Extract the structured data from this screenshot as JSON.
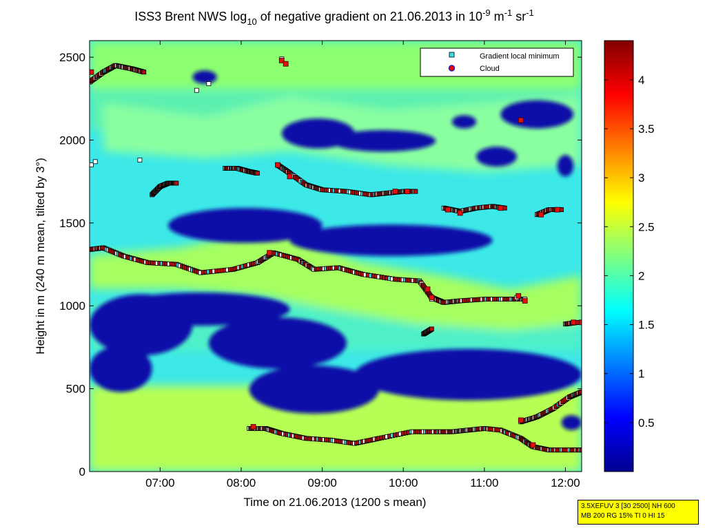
{
  "chart_data": {
    "type": "heatmap",
    "title_parts": {
      "pre": "ISS3 Brent NWS log",
      "sub": "10",
      "mid": " of negative gradient on 21.06.2013 in 10",
      "exp1": "-9",
      "unit1": " m",
      "exp2": "-1",
      "unit2": " sr",
      "exp3": "-1"
    },
    "xlabel": "Time on 21.06.2013 (1200 s mean)",
    "ylabel": "Height in m (240 m mean, tilted by 3°)",
    "xlim_hours": [
      6.13,
      12.2
    ],
    "ylim": [
      0,
      2600
    ],
    "x_ticks": [
      {
        "h": 7,
        "label": "07:00"
      },
      {
        "h": 8,
        "label": "08:00"
      },
      {
        "h": 9,
        "label": "09:00"
      },
      {
        "h": 10,
        "label": "10:00"
      },
      {
        "h": 11,
        "label": "11:00"
      },
      {
        "h": 12,
        "label": "12:00"
      }
    ],
    "y_ticks": [
      0,
      500,
      1000,
      1500,
      2000,
      2500
    ],
    "colorbar": {
      "range": [
        0,
        4.4
      ],
      "ticks": [
        0.5,
        1,
        1.5,
        2,
        2.5,
        3,
        3.5,
        4
      ],
      "tick_labels": [
        "0.5",
        "1",
        "1.5",
        "2",
        "2.5",
        "3",
        "3.5",
        "4"
      ]
    },
    "legend": {
      "entries": [
        "Gradient local minimum",
        "Cloud"
      ],
      "position": "top-right"
    },
    "low_value_regions": [
      {
        "x": [
          6.13,
          7.4
        ],
        "y": [
          700,
          1070
        ]
      },
      {
        "x": [
          6.13,
          6.9
        ],
        "y": [
          480,
          760
        ]
      },
      {
        "x": [
          6.4,
          8.6
        ],
        "y": [
          880,
          1080
        ]
      },
      {
        "x": [
          7.6,
          9.3
        ],
        "y": [
          620,
          930
        ]
      },
      {
        "x": [
          8.1,
          9.7
        ],
        "y": [
          350,
          640
        ]
      },
      {
        "x": [
          9.4,
          12.2
        ],
        "y": [
          430,
          740
        ]
      },
      {
        "x": [
          7.1,
          9.0
        ],
        "y": [
          1380,
          1590
        ]
      },
      {
        "x": [
          8.6,
          11.1
        ],
        "y": [
          1300,
          1490
        ]
      },
      {
        "x": [
          8.5,
          9.4
        ],
        "y": [
          1950,
          2130
        ]
      },
      {
        "x": [
          9.1,
          10.4
        ],
        "y": [
          1930,
          2060
        ]
      },
      {
        "x": [
          11.2,
          12.1
        ],
        "y": [
          2070,
          2240
        ]
      },
      {
        "x": [
          10.9,
          11.4
        ],
        "y": [
          1840,
          1960
        ]
      },
      {
        "x": [
          11.9,
          12.1
        ],
        "y": [
          1780,
          1910
        ]
      },
      {
        "x": [
          7.4,
          7.7
        ],
        "y": [
          2340,
          2420
        ]
      },
      {
        "x": [
          10.6,
          10.9
        ],
        "y": [
          2070,
          2150
        ]
      },
      {
        "x": [
          11.95,
          12.2
        ],
        "y": [
          250,
          340
        ]
      }
    ],
    "series": [
      {
        "name": "Gradient local minimum",
        "curves": [
          {
            "x": [
              6.13,
              6.3,
              6.55,
              6.85,
              7.2,
              7.5,
              7.9,
              8.2,
              8.4,
              8.7,
              8.9,
              9.2,
              9.5,
              9.9,
              10.2,
              10.35,
              10.5,
              10.7,
              11.0,
              11.3,
              11.5
            ],
            "y": [
              1340,
              1350,
              1300,
              1260,
              1250,
              1200,
              1220,
              1260,
              1320,
              1280,
              1220,
              1230,
              1190,
              1160,
              1150,
              1050,
              1020,
              1030,
              1040,
              1040,
              1040
            ]
          },
          {
            "x": [
              8.1,
              8.3,
              8.5,
              8.8,
              9.1,
              9.4,
              9.7,
              10.1,
              10.4,
              10.6,
              10.8,
              11.0,
              11.2,
              11.45,
              11.6,
              11.8,
              12.0,
              12.2
            ],
            "y": [
              260,
              260,
              230,
              200,
              190,
              170,
              200,
              240,
              240,
              240,
              250,
              260,
              250,
              200,
              150,
              130,
              130,
              130
            ]
          },
          {
            "x": [
              8.45,
              8.6,
              8.8,
              9.0,
              9.3,
              9.6,
              9.8,
              10.0,
              10.15
            ],
            "y": [
              1850,
              1800,
              1730,
              1700,
              1690,
              1670,
              1680,
              1690,
              1690
            ]
          },
          {
            "x": [
              10.5,
              10.7,
              10.9,
              11.1,
              11.25
            ],
            "y": [
              1590,
              1570,
              1590,
              1600,
              1590
            ]
          },
          {
            "x": [
              11.65,
              11.8,
              11.95
            ],
            "y": [
              1550,
              1580,
              1580
            ]
          },
          {
            "x": [
              11.45,
              11.65,
              11.85,
              12.05,
              12.2
            ],
            "y": [
              300,
              330,
              380,
              450,
              480
            ]
          },
          {
            "x": [
              7.8,
              7.95,
              8.1,
              8.2
            ],
            "y": [
              1830,
              1830,
              1810,
              1800
            ]
          },
          {
            "x": [
              6.9,
              7.0,
              7.1,
              7.2
            ],
            "y": [
              1670,
              1720,
              1740,
              1740
            ]
          },
          {
            "x": [
              6.13,
              6.3,
              6.45,
              6.65,
              6.8
            ],
            "y": [
              2350,
              2410,
              2450,
              2430,
              2410
            ]
          },
          {
            "x": [
              12.0,
              12.15
            ],
            "y": [
              890,
              900
            ]
          },
          {
            "x": [
              10.25,
              10.35
            ],
            "y": [
              830,
              860
            ]
          }
        ],
        "isolated": [
          {
            "x": 6.15,
            "y": 1850
          },
          {
            "x": 6.2,
            "y": 1870
          },
          {
            "x": 6.75,
            "y": 1880
          },
          {
            "x": 7.6,
            "y": 2340
          },
          {
            "x": 7.45,
            "y": 2300
          },
          {
            "x": 8.5,
            "y": 2490
          },
          {
            "x": 10.35,
            "y": 1040
          },
          {
            "x": 11.4,
            "y": 1050
          },
          {
            "x": 11.45,
            "y": 2120
          }
        ]
      },
      {
        "name": "Cloud",
        "points": [
          {
            "x": 8.5,
            "y": 2480
          },
          {
            "x": 8.55,
            "y": 2460
          },
          {
            "x": 11.45,
            "y": 2120
          },
          {
            "x": 11.42,
            "y": 1060
          },
          {
            "x": 8.45,
            "y": 1850
          },
          {
            "x": 8.6,
            "y": 1780
          },
          {
            "x": 9.9,
            "y": 1690
          },
          {
            "x": 10.05,
            "y": 1690
          },
          {
            "x": 10.55,
            "y": 1580
          },
          {
            "x": 10.7,
            "y": 1560
          },
          {
            "x": 11.2,
            "y": 1590
          },
          {
            "x": 11.7,
            "y": 1550
          },
          {
            "x": 11.9,
            "y": 1580
          },
          {
            "x": 10.3,
            "y": 1100
          },
          {
            "x": 10.35,
            "y": 1050
          },
          {
            "x": 11.5,
            "y": 1030
          },
          {
            "x": 12.1,
            "y": 900
          },
          {
            "x": 12.2,
            "y": 900
          },
          {
            "x": 8.35,
            "y": 1320
          },
          {
            "x": 6.15,
            "y": 2410
          },
          {
            "x": 8.15,
            "y": 270
          },
          {
            "x": 11.6,
            "y": 160
          },
          {
            "x": 11.45,
            "y": 310
          }
        ]
      }
    ]
  },
  "info_box": {
    "line1": "3.5XEFUV 3 [30 2500] NH 600",
    "line2": "MB 200 RG 15% TI 0 HI 15"
  }
}
